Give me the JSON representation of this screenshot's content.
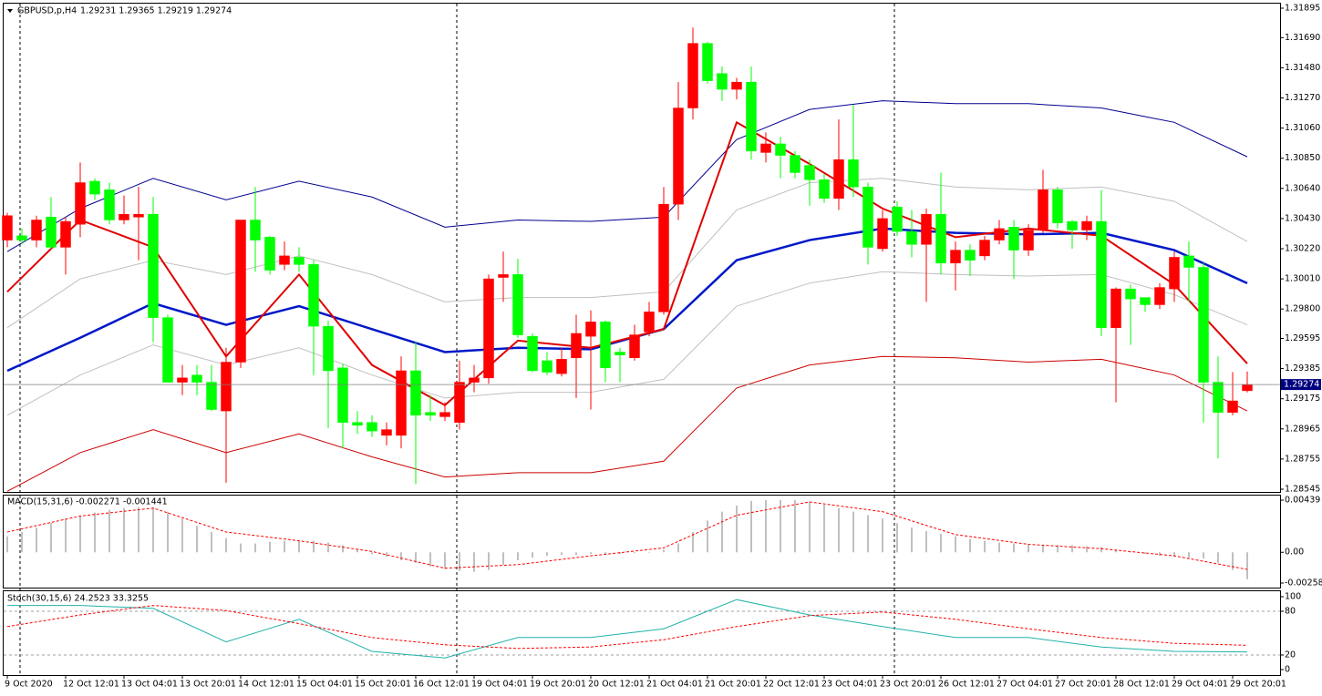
{
  "chart_data": [
    {
      "type": "candlestick",
      "title": "GBPUSD,p,H4",
      "subtitle": "1.29231 1.29365 1.29219 1.29274",
      "categories": [
        "9 Oct 2020",
        null,
        null,
        null,
        "12 Oct 12:01",
        null,
        null,
        null,
        "13 Oct 04:01",
        null,
        null,
        null,
        "13 Oct 20:01",
        null,
        null,
        null,
        "14 Oct 12:01",
        null,
        null,
        null,
        "15 Oct 04:01",
        null,
        null,
        null,
        "15 Oct 20:01",
        null,
        null,
        null,
        "16 Oct 12:01",
        null,
        null,
        null,
        "19 Oct 04:01",
        null,
        null,
        null,
        "19 Oct 20:01",
        null,
        null,
        null,
        "20 Oct 12:01",
        null,
        null,
        null,
        "21 Oct 04:01",
        null,
        null,
        null,
        "21 Oct 20:01",
        null,
        null,
        null,
        "22 Oct 12:01",
        null,
        null,
        null,
        "23 Oct 04:01",
        null,
        null,
        null,
        "23 Oct 20:01",
        null,
        null,
        null,
        "26 Oct 12:01",
        null,
        null,
        null,
        "27 Oct 04:01",
        null,
        null,
        null,
        "27 Oct 20:01",
        null,
        null,
        null,
        "28 Oct 12:01",
        null,
        null,
        null,
        "29 Oct 04:01",
        null,
        null,
        null,
        "29 Oct 20:01",
        null
      ],
      "candles": [
        [
          1.3028,
          1.3047,
          1.3023,
          1.3045
        ],
        [
          1.3031,
          1.3036,
          1.3025,
          1.3028
        ],
        [
          1.3028,
          1.3045,
          1.3023,
          1.3042
        ],
        [
          1.3044,
          1.3058,
          1.3022,
          1.3023
        ],
        [
          1.3023,
          1.3044,
          1.3004,
          1.3041
        ],
        [
          1.3039,
          1.3082,
          1.303,
          1.3068
        ],
        [
          1.3069,
          1.3071,
          1.3056,
          1.306
        ],
        [
          1.3063,
          1.3068,
          1.3039,
          1.3042
        ],
        [
          1.3042,
          1.3059,
          1.3039,
          1.3046
        ],
        [
          1.3044,
          1.3065,
          1.3014,
          1.3046
        ],
        [
          1.3046,
          1.3058,
          1.2957,
          1.2974
        ],
        [
          1.2974,
          1.2976,
          1.2929,
          1.2929
        ],
        [
          1.2929,
          1.2941,
          1.292,
          1.2932
        ],
        [
          1.2934,
          1.2941,
          1.292,
          1.2929
        ],
        [
          1.2929,
          1.2941,
          1.2909,
          1.291
        ],
        [
          1.2909,
          1.2953,
          1.2859,
          1.2943
        ],
        [
          1.2943,
          1.3042,
          1.2939,
          1.3042
        ],
        [
          1.3042,
          1.3065,
          1.3006,
          1.3028
        ],
        [
          1.303,
          1.3031,
          1.3004,
          1.3007
        ],
        [
          1.3011,
          1.3027,
          1.3007,
          1.3017
        ],
        [
          1.3016,
          1.3023,
          1.3006,
          1.3011
        ],
        [
          1.3011,
          1.3014,
          1.2934,
          1.2968
        ],
        [
          1.2968,
          1.2972,
          1.2897,
          1.2937
        ],
        [
          1.2939,
          1.2942,
          1.2883,
          1.2901
        ],
        [
          1.2901,
          1.2909,
          1.2893,
          1.2899
        ],
        [
          1.2901,
          1.2906,
          1.2891,
          1.2895
        ],
        [
          1.2892,
          1.2901,
          1.2885,
          1.2896
        ],
        [
          1.2892,
          1.2947,
          1.2883,
          1.2937
        ],
        [
          1.2937,
          1.2957,
          1.2858,
          1.2906
        ],
        [
          1.2908,
          1.292,
          1.2902,
          1.2906
        ],
        [
          1.2905,
          1.2915,
          1.2902,
          1.2908
        ],
        [
          1.2901,
          1.2944,
          1.2896,
          1.2929
        ],
        [
          1.2929,
          1.2941,
          1.2922,
          1.2932
        ],
        [
          1.2932,
          1.3004,
          1.2928,
          1.3001
        ],
        [
          1.3002,
          1.302,
          1.2985,
          1.3004
        ],
        [
          1.3004,
          1.3015,
          1.296,
          1.2962
        ],
        [
          1.2961,
          1.2963,
          1.2936,
          1.2937
        ],
        [
          1.2944,
          1.295,
          1.2934,
          1.2936
        ],
        [
          1.2935,
          1.2953,
          1.2933,
          1.2945
        ],
        [
          1.2946,
          1.2976,
          1.2918,
          1.2963
        ],
        [
          1.2961,
          1.2979,
          1.291,
          1.2971
        ],
        [
          1.2971,
          1.2972,
          1.2929,
          1.2939
        ],
        [
          1.295,
          1.2953,
          1.2929,
          1.2948
        ],
        [
          1.2946,
          1.2969,
          1.2944,
          1.2962
        ],
        [
          1.2964,
          1.2985,
          1.2961,
          1.2978
        ],
        [
          1.2978,
          1.3065,
          1.2976,
          1.3053
        ],
        [
          1.3053,
          1.3138,
          1.3042,
          1.312
        ],
        [
          1.312,
          1.3176,
          1.3112,
          1.3165
        ],
        [
          1.3165,
          1.3166,
          1.3137,
          1.3139
        ],
        [
          1.3144,
          1.3149,
          1.3125,
          1.3133
        ],
        [
          1.3133,
          1.3141,
          1.3126,
          1.3138
        ],
        [
          1.3138,
          1.3149,
          1.3084,
          1.309
        ],
        [
          1.3089,
          1.3103,
          1.3082,
          1.3095
        ],
        [
          1.3095,
          1.31,
          1.3071,
          1.3087
        ],
        [
          1.3087,
          1.309,
          1.3071,
          1.3075
        ],
        [
          1.308,
          1.3084,
          1.3052,
          1.307
        ],
        [
          1.307,
          1.3074,
          1.3054,
          1.3057
        ],
        [
          1.3057,
          1.3112,
          1.3049,
          1.3084
        ],
        [
          1.3084,
          1.3122,
          1.3058,
          1.3065
        ],
        [
          1.3065,
          1.3068,
          1.3011,
          1.3023
        ],
        [
          1.3022,
          1.3049,
          1.302,
          1.3043
        ],
        [
          1.3051,
          1.3055,
          1.3031,
          1.3034
        ],
        [
          1.3034,
          1.3049,
          1.3016,
          1.3025
        ],
        [
          1.3025,
          1.305,
          1.2985,
          1.3046
        ],
        [
          1.3046,
          1.3075,
          1.3004,
          1.3012
        ],
        [
          1.3012,
          1.3027,
          1.2993,
          1.3021
        ],
        [
          1.3021,
          1.3025,
          1.3003,
          1.3014
        ],
        [
          1.3017,
          1.3031,
          1.3014,
          1.3028
        ],
        [
          1.3028,
          1.3042,
          1.3025,
          1.3036
        ],
        [
          1.3037,
          1.3042,
          1.3001,
          1.3021
        ],
        [
          1.3021,
          1.3039,
          1.3017,
          1.3035
        ],
        [
          1.3035,
          1.3077,
          1.3033,
          1.3063
        ],
        [
          1.3063,
          1.3065,
          1.3036,
          1.304
        ],
        [
          1.3041,
          1.3042,
          1.3022,
          1.3035
        ],
        [
          1.3035,
          1.3045,
          1.3028,
          1.3041
        ],
        [
          1.3041,
          1.3063,
          1.2961,
          1.2967
        ],
        [
          1.2967,
          1.2995,
          1.2915,
          1.2994
        ],
        [
          1.2994,
          1.2997,
          1.2955,
          1.2987
        ],
        [
          1.2988,
          1.2988,
          1.2978,
          1.2983
        ],
        [
          1.2983,
          1.2998,
          1.298,
          1.2995
        ],
        [
          1.2994,
          1.302,
          1.2985,
          1.3016
        ],
        [
          1.3017,
          1.3027,
          1.2985,
          1.3009
        ],
        [
          1.3009,
          1.3012,
          1.2901,
          1.2929
        ],
        [
          1.2929,
          1.2947,
          1.2876,
          1.2908
        ],
        [
          1.2908,
          1.2936,
          1.2906,
          1.2916
        ],
        [
          1.29231,
          1.29365,
          1.29219,
          1.29274
        ]
      ],
      "bull_color": "#ff0000",
      "bear_color": "#00ff00",
      "series": [
        {
          "color": "#c0c0c0",
          "width": 1,
          "x": [
            0,
            5,
            10,
            15,
            20,
            25,
            30,
            35,
            40,
            45,
            50,
            55,
            60,
            65,
            70,
            75,
            80,
            85
          ],
          "values": [
            1.2967,
            1.3001,
            1.3014,
            1.3004,
            1.3017,
            1.3004,
            1.2985,
            1.2988,
            1.2988,
            1.2992,
            1.3049,
            1.3068,
            1.3071,
            1.3065,
            1.3063,
            1.3065,
            1.3055,
            1.3027
          ]
        },
        {
          "color": "#c0c0c0",
          "width": 1,
          "x": [
            0,
            5,
            10,
            15,
            20,
            25,
            30,
            35,
            40,
            45,
            50,
            55,
            60,
            65,
            70,
            75,
            80,
            85
          ],
          "values": [
            1.2906,
            1.2934,
            1.2955,
            1.2941,
            1.2953,
            1.2934,
            1.2918,
            1.2922,
            1.2922,
            1.2931,
            1.2982,
            1.2998,
            1.3006,
            1.3004,
            1.3003,
            1.3004,
            1.299,
            1.2969
          ]
        },
        {
          "color": "#000090",
          "width": 1,
          "x": [
            0,
            5,
            10,
            15,
            20,
            25,
            30,
            35,
            40,
            45,
            50,
            55,
            60,
            65,
            70,
            75,
            80,
            85
          ],
          "values": [
            1.302,
            1.305,
            1.3071,
            1.3056,
            1.3069,
            1.3058,
            1.3037,
            1.3042,
            1.3041,
            1.3044,
            1.3098,
            1.3119,
            1.3125,
            1.3123,
            1.3123,
            1.312,
            1.311,
            1.3086
          ]
        },
        {
          "color": "#cc0000",
          "width": 1,
          "x": [
            0,
            5,
            10,
            15,
            20,
            25,
            30,
            35,
            40,
            45,
            50,
            55,
            60,
            65,
            70,
            75,
            80,
            85
          ],
          "values": [
            1.2853,
            1.288,
            1.2896,
            1.288,
            1.2893,
            1.2877,
            1.2863,
            1.2866,
            1.2866,
            1.2874,
            1.2925,
            1.2941,
            1.2947,
            1.2946,
            1.2943,
            1.2945,
            1.2934,
            1.2909
          ]
        },
        {
          "color": "#0018c8",
          "width": 2.5,
          "x": [
            0,
            5,
            10,
            15,
            20,
            25,
            30,
            35,
            40,
            45,
            50,
            55,
            60,
            65,
            70,
            75,
            80,
            85
          ],
          "values": [
            1.2937,
            1.296,
            1.2984,
            1.2969,
            1.2982,
            1.2966,
            1.295,
            1.2953,
            1.2952,
            1.2966,
            1.3014,
            1.3028,
            1.3036,
            1.3033,
            1.3032,
            1.3033,
            1.3021,
            1.2998
          ]
        },
        {
          "color": "#e00000",
          "width": 2,
          "x": [
            0,
            5,
            10,
            15,
            20,
            25,
            30,
            35,
            40,
            45,
            50,
            55,
            60,
            65,
            70,
            75,
            80,
            85
          ],
          "values": [
            1.2992,
            1.3042,
            1.3023,
            1.2947,
            1.3004,
            1.2941,
            1.2913,
            1.2958,
            1.2953,
            1.2966,
            1.311,
            1.3081,
            1.305,
            1.303,
            1.3036,
            1.3031,
            1.2997,
            1.2942
          ]
        }
      ],
      "last_price": {
        "value": 1.29274,
        "label": "1.29274"
      },
      "ylim": [
        1.28545,
        1.31895
      ],
      "yticks": [
        1.31895,
        {
          "value": 1.3169,
          "label": "1.31690"
        },
        {
          "value": 1.3148,
          "label": "1.31480"
        },
        {
          "value": 1.3127,
          "label": "1.31270"
        },
        {
          "value": 1.3106,
          "label": "1.31060"
        },
        {
          "value": 1.3085,
          "label": "1.30850"
        },
        {
          "value": 1.3064,
          "label": "1.30640"
        },
        {
          "value": 1.3043,
          "label": "1.30430"
        },
        {
          "value": 1.3022,
          "label": "1.30220"
        },
        {
          "value": 1.3001,
          "label": "1.30010"
        },
        {
          "value": 1.298,
          "label": "1.29800"
        },
        1.29595,
        1.29385,
        1.29175,
        1.28965,
        1.28755,
        1.28545
      ]
    },
    {
      "type": "macd",
      "title": "MACD(15,31,6) -0.002271 -0.001441",
      "values": [
        0.00134,
        0.00171,
        0.00208,
        0.00246,
        0.00283,
        0.00305,
        0.00335,
        0.00357,
        0.00372,
        0.00379,
        0.00379,
        0.00342,
        0.00283,
        0.00223,
        0.00171,
        0.00119,
        0.00074,
        0.00074,
        0.00089,
        0.00097,
        0.00097,
        0.00097,
        0.00082,
        0.0006,
        0.00022,
        -0.00015,
        -0.00037,
        -0.00067,
        -0.00089,
        -0.00119,
        -0.00141,
        -0.00156,
        -0.00164,
        -0.00149,
        -0.00104,
        -0.00067,
        -0.00045,
        -0.0003,
        -0.00022,
        -0.00022,
        -0.00015,
        -0.00015,
        -0.00015,
        -7e-05,
        2e-05,
        0.00022,
        0.00074,
        0.00171,
        0.00268,
        0.00342,
        0.00394,
        0.00432,
        0.00439,
        0.00439,
        0.00439,
        0.00424,
        0.00402,
        0.00372,
        0.00342,
        0.00312,
        0.00283,
        0.00246,
        0.00208,
        0.00179,
        0.00156,
        0.00134,
        0.00112,
        0.00097,
        0.00082,
        0.00074,
        0.00067,
        0.0006,
        0.0006,
        0.0006,
        0.00052,
        0.00045,
        0.00022,
        2e-05,
        -0.00015,
        -0.0003,
        -0.00037,
        -0.00045,
        -0.00052,
        -0.00089,
        -0.00149,
        -0.002271
      ],
      "color": "#c0c0c0",
      "series": [
        {
          "color": "#ff0000",
          "dashed": true,
          "x": [
            0,
            5,
            10,
            15,
            20,
            25,
            30,
            35,
            40,
            45,
            50,
            55,
            60,
            65,
            70,
            75,
            80,
            85
          ],
          "values": [
            0.00171,
            0.00305,
            0.00372,
            0.00171,
            0.00097,
            7e-05,
            -0.00134,
            -0.00104,
            -0.0003,
            0.00037,
            0.00312,
            0.00424,
            0.00342,
            0.00149,
            0.00067,
            0.0003,
            -0.0003,
            -0.001441
          ]
        }
      ],
      "ylim": [
        -0.002588,
        0.00439
      ],
      "yticks": [
        0.00439,
        {
          "value": 0,
          "label": "0.00"
        },
        -0.002588
      ]
    },
    {
      "type": "stochastic",
      "title": "Stoch(30,15,6) 24.2523 33.3255",
      "series": [
        {
          "color": "#20b2aa",
          "dashed": false,
          "x": [
            0,
            5,
            10,
            15,
            20,
            25,
            30,
            35,
            40,
            45,
            50,
            55,
            60,
            65,
            70,
            75,
            80,
            85
          ],
          "values": [
            88,
            88,
            84,
            38,
            69,
            25,
            16,
            44,
            44,
            56,
            96,
            75,
            59,
            44,
            44,
            31,
            25,
            24.2523
          ]
        },
        {
          "color": "#ff0000",
          "dashed": true,
          "x": [
            0,
            5,
            10,
            15,
            20,
            25,
            30,
            35,
            40,
            45,
            50,
            55,
            60,
            65,
            70,
            75,
            80,
            85
          ],
          "values": [
            59,
            75,
            88,
            81,
            63,
            44,
            34,
            29,
            31,
            41,
            59,
            74,
            79,
            69,
            56,
            44,
            36,
            33.3255
          ]
        }
      ],
      "levels": [
        80,
        20
      ],
      "ylim": [
        0,
        100
      ],
      "yticks": [
        100,
        80,
        20,
        0
      ]
    }
  ]
}
